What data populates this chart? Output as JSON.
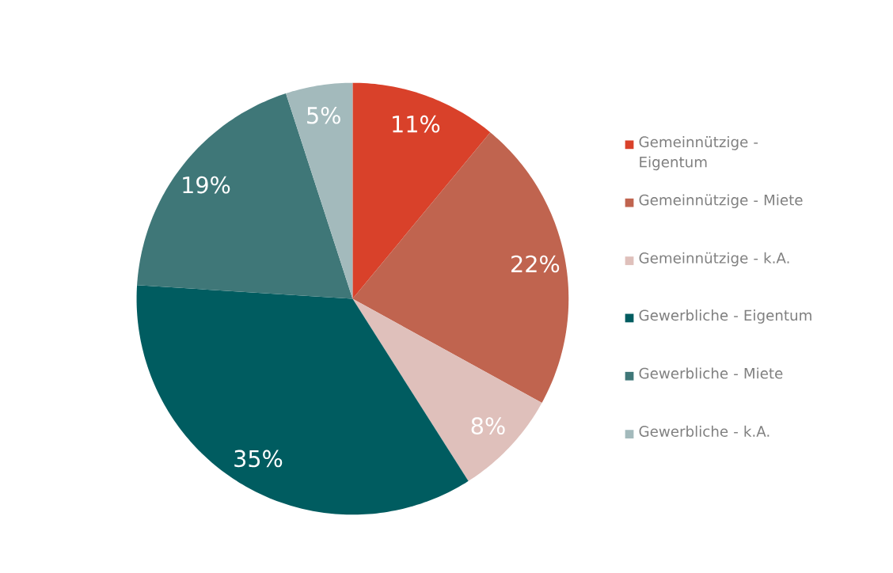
{
  "chart_data": {
    "type": "pie",
    "categories": [
      "Gemeinnützige - Eigentum",
      "Gemeinnützige - Miete",
      "Gemeinnützige - k.A.",
      "Gewerbliche - Eigentum",
      "Gewerbliche - Miete",
      "Gewerbliche - k.A."
    ],
    "values": [
      11,
      22,
      8,
      35,
      19,
      5
    ],
    "colors": [
      "#d9412a",
      "#c0644f",
      "#dfc0bb",
      "#005c60",
      "#3f7778",
      "#a3babc"
    ],
    "value_labels": [
      "11%",
      "22%",
      "8%",
      "35%",
      "19%",
      "5%"
    ],
    "legend": "right"
  }
}
